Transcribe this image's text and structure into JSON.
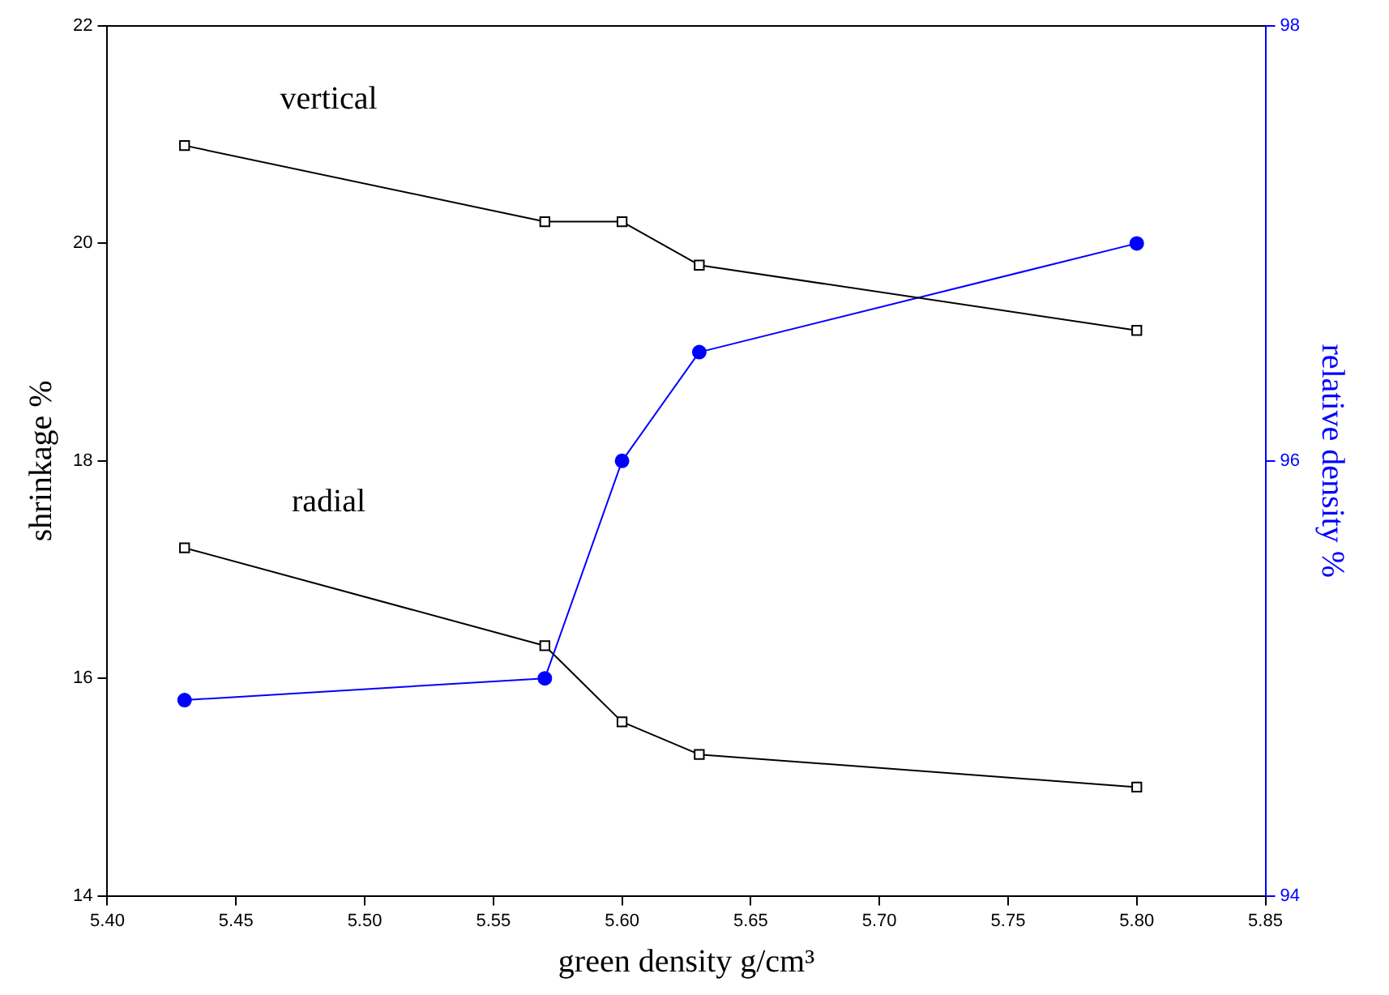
{
  "chart_data": {
    "type": "line",
    "xlabel": "green density g/cm³",
    "ylabel": "shrinkage %",
    "y2label": "relative density %",
    "x": [
      5.43,
      5.57,
      5.6,
      5.63,
      5.8
    ],
    "series": [
      {
        "name": "vertical",
        "color": "#000000",
        "marker": "square",
        "values": [
          20.9,
          20.2,
          20.2,
          19.8,
          19.2
        ]
      },
      {
        "name": "radial",
        "color": "#000000",
        "marker": "square",
        "values": [
          17.2,
          16.3,
          15.6,
          15.3,
          15.0
        ]
      },
      {
        "color": "#0000ff",
        "marker": "circle",
        "axis": "y2",
        "values": [
          94.9,
          95.0,
          96.0,
          96.5,
          97.0
        ]
      }
    ],
    "xlim": [
      5.4,
      5.85
    ],
    "xticks": [
      {
        "value": 5.4,
        "label": "5.40"
      },
      {
        "value": 5.45,
        "label": "5.45"
      },
      {
        "value": 5.5,
        "label": "5.50"
      },
      {
        "value": 5.55,
        "label": "5.55"
      },
      {
        "value": 5.6,
        "label": "5.60"
      },
      {
        "value": 5.65,
        "label": "5.65"
      },
      {
        "value": 5.7,
        "label": "5.70"
      },
      {
        "value": 5.75,
        "label": "5.75"
      },
      {
        "value": 5.8,
        "label": "5.80"
      },
      {
        "value": 5.85,
        "label": "5.85"
      }
    ],
    "ylim": [
      14,
      22
    ],
    "yticks": [
      14,
      16,
      18,
      20,
      22
    ],
    "y2lim": [
      94,
      98
    ],
    "y2ticks": [
      94,
      96,
      98
    ],
    "grid": false,
    "legend": false
  }
}
